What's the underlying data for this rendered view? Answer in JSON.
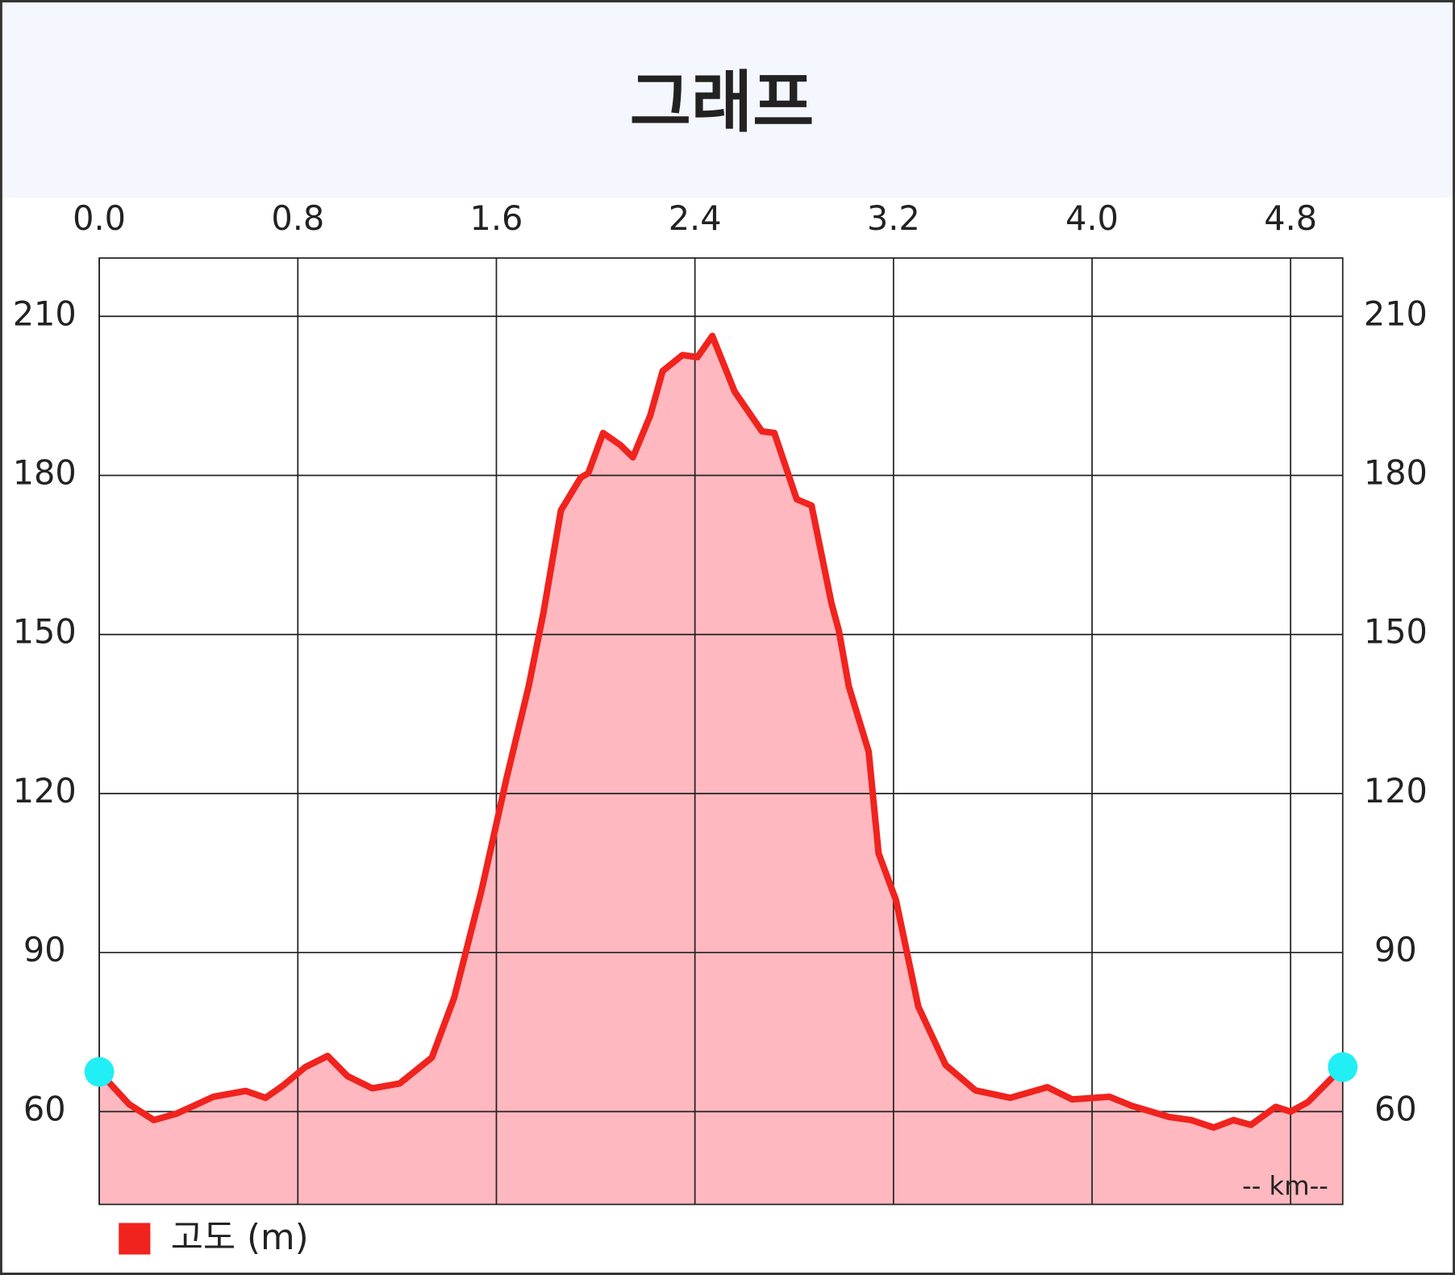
{
  "chart_data": {
    "type": "area",
    "title": "그래프",
    "x": [
      0,
      0.12,
      0.22,
      0.31,
      0.46,
      0.59,
      0.67,
      0.74,
      0.83,
      0.92,
      1.0,
      1.1,
      1.21,
      1.34,
      1.43,
      1.54,
      1.64,
      1.73,
      1.79,
      1.86,
      1.94,
      1.97,
      2.03,
      2.1,
      2.15,
      2.22,
      2.27,
      2.35,
      2.41,
      2.47,
      2.56,
      2.67,
      2.72,
      2.81,
      2.87,
      2.95,
      2.98,
      3.02,
      3.1,
      3.14,
      3.21,
      3.3,
      3.41,
      3.53,
      3.67,
      3.82,
      3.92,
      4.07,
      4.16,
      4.31,
      4.4,
      4.49,
      4.57,
      4.64,
      4.74,
      4.8,
      4.87,
      5.01
    ],
    "series": [
      {
        "name": "고도 (m)",
        "color": "#f0231e",
        "fill": "#ffb8bf",
        "values": [
          67.5,
          61.4,
          58.4,
          59.6,
          62.8,
          63.9,
          62.6,
          64.9,
          68.4,
          70.5,
          66.7,
          64.4,
          65.3,
          70.2,
          81.5,
          101.7,
          122.7,
          140.2,
          154.2,
          173.4,
          179.6,
          180.4,
          188,
          185.7,
          183.4,
          191.3,
          199.7,
          202.7,
          202.3,
          206.3,
          195.8,
          188.3,
          188,
          175.5,
          174.3,
          155.9,
          150.7,
          140.2,
          127.9,
          108.7,
          99.9,
          79.8,
          68.8,
          64,
          62.6,
          64.6,
          62.3,
          62.8,
          61.1,
          59,
          58.4,
          57,
          58.4,
          57.5,
          60.9,
          60,
          61.8,
          68.4
        ]
      }
    ],
    "xlim": [
      0,
      5.01
    ],
    "xticks": [
      {
        "value": 0,
        "label": "0.0"
      },
      0.8,
      1.6,
      2.4,
      3.2,
      {
        "value": 4,
        "label": "4.0"
      },
      4.8
    ],
    "ylim": [
      42.5,
      221
    ],
    "yticks": [
      60,
      90,
      120,
      150,
      180,
      210
    ],
    "x_unit_label": "-- km--",
    "grid": true,
    "endpoint_color": "#22eef5"
  }
}
